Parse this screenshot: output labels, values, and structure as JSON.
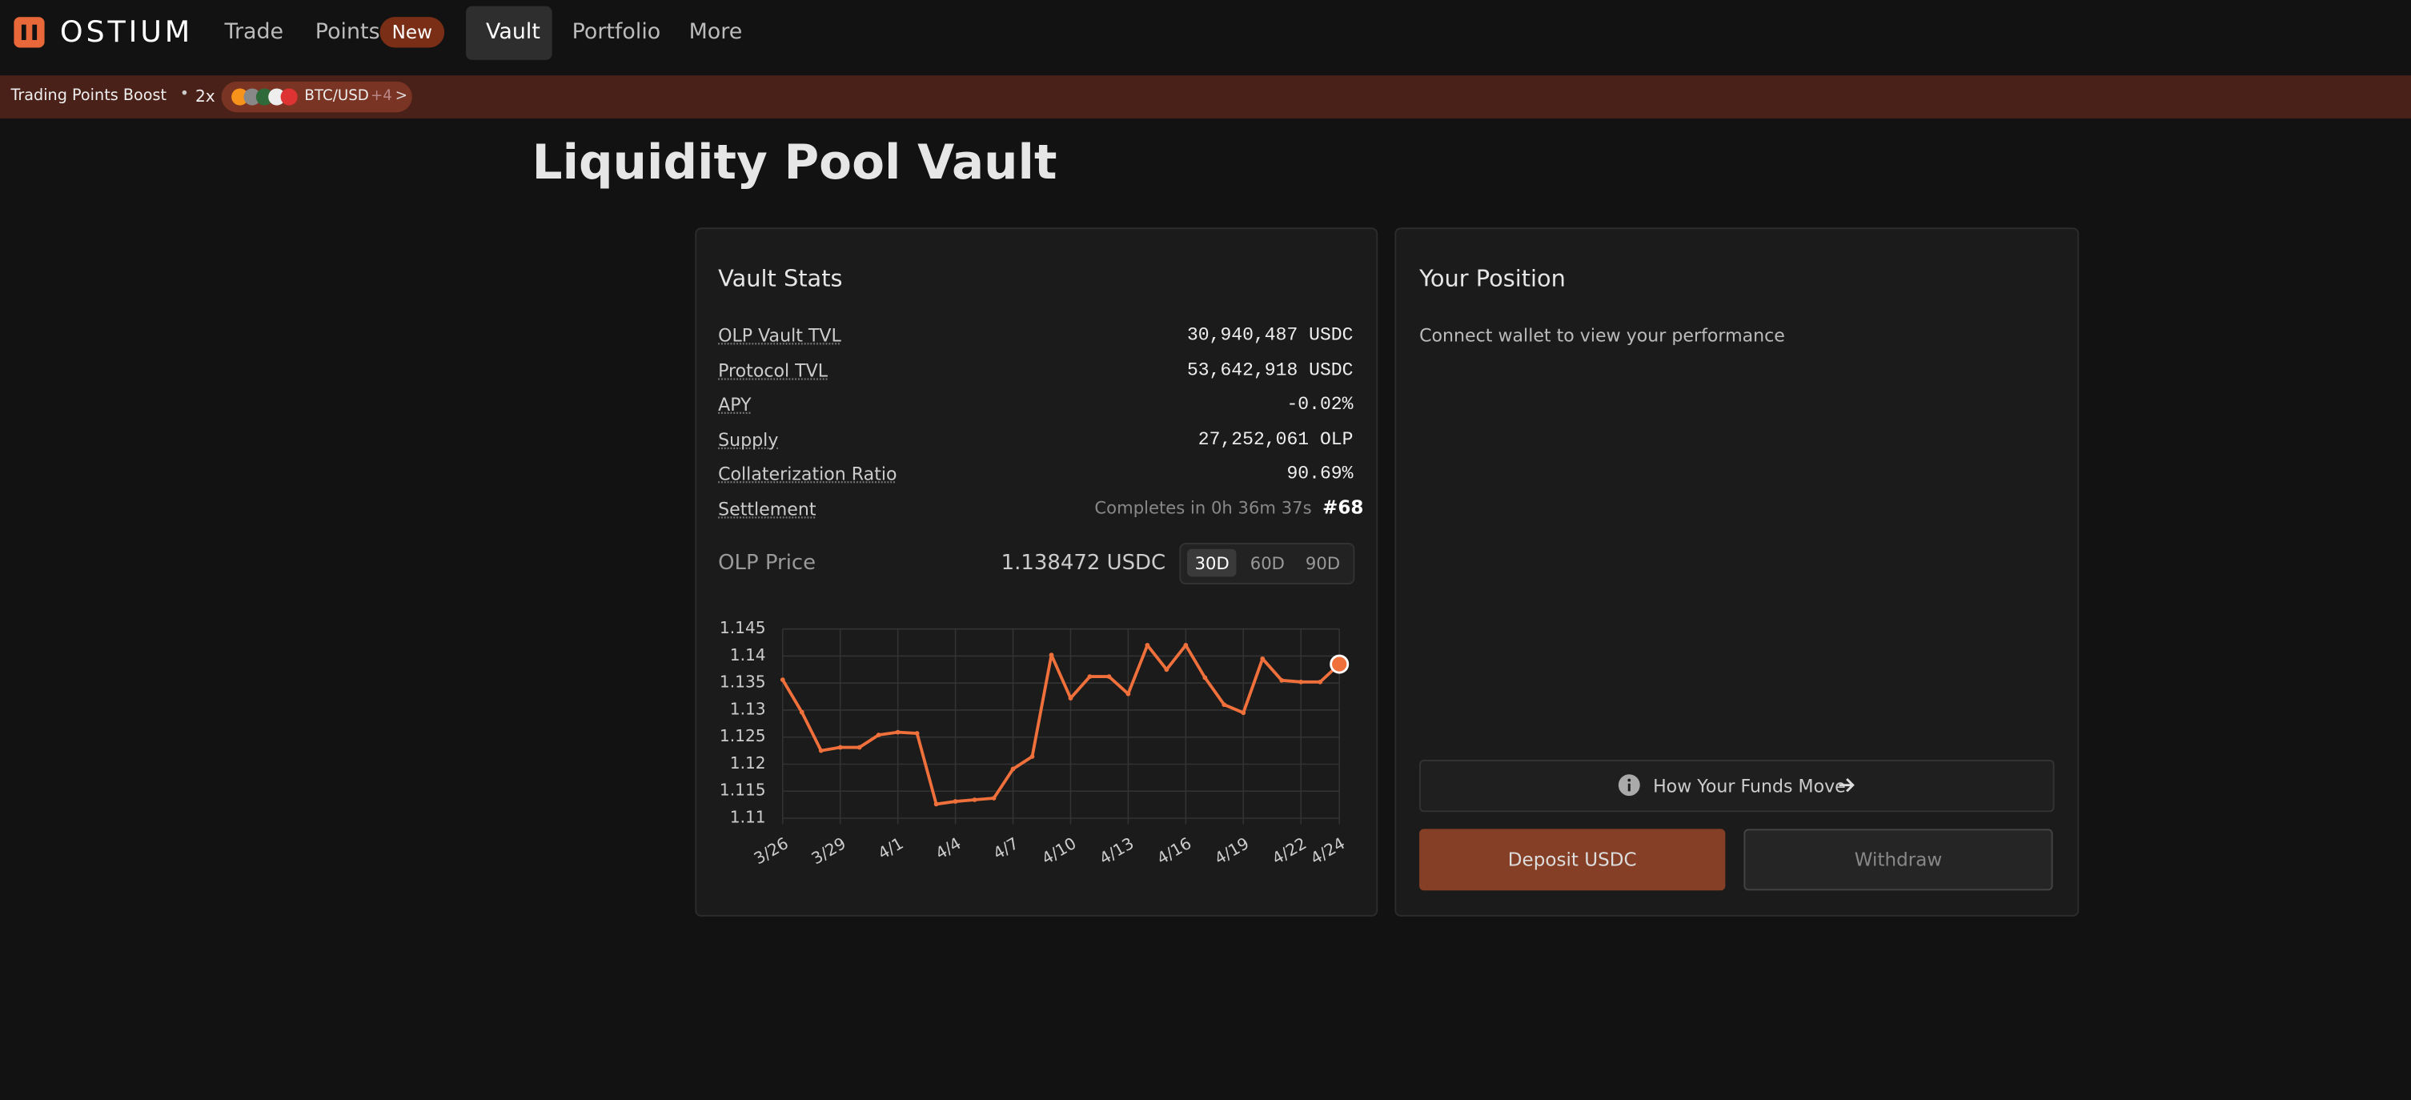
{
  "nav": {
    "logo": "OSTIUM",
    "items": [
      "Trade",
      "Points",
      "Vault",
      "Portfolio",
      "More"
    ],
    "badge": "New"
  },
  "banner": {
    "label": "Trading Points Boost",
    "multiplier": "2x",
    "pair": "BTC/USD",
    "more": "+4",
    "arrow": ">"
  },
  "page_title": "Liquidity Pool Vault",
  "vault_stats": {
    "title": "Vault Stats",
    "rows": [
      [
        "OLP Vault TVL",
        "30,940,487 USDC"
      ],
      [
        "Protocol TVL",
        "53,642,918 USDC"
      ],
      [
        "APY",
        "-0.02%"
      ],
      [
        "Supply",
        "27,252,061 OLP"
      ],
      [
        "Collaterization Ratio",
        "90.69%"
      ],
      [
        "Settlement",
        "Completes in 0h 36m 37s"
      ]
    ],
    "settlement_id": "#68",
    "price_label": "OLP Price",
    "price": "1.138472 USDC",
    "ranges": [
      "30D",
      "60D",
      "90D"
    ]
  },
  "chart_data": {
    "type": "line",
    "categories": [
      "3/26",
      null,
      null,
      "3/29",
      null,
      null,
      "4/1",
      null,
      null,
      "4/4",
      null,
      null,
      "4/7",
      null,
      null,
      "4/10",
      null,
      null,
      "4/13",
      null,
      null,
      "4/16",
      null,
      null,
      "4/19",
      null,
      null,
      "4/22",
      null,
      "4/24"
    ],
    "series": [
      {
        "name": "OLP Price",
        "color": "#f0703c",
        "values": [
          1.1356,
          1.1296,
          1.1225,
          1.1231,
          1.1231,
          1.1254,
          1.1259,
          1.1257,
          1.1126,
          1.1131,
          1.1134,
          1.1137,
          1.1191,
          1.1214,
          1.1402,
          1.1322,
          1.1362,
          1.1362,
          1.133,
          1.142,
          1.1375,
          1.142,
          1.136,
          1.131,
          1.1295,
          1.1395,
          1.1355,
          1.1352,
          1.1352,
          1.1385
        ]
      }
    ],
    "ylim": [
      1.11,
      1.145
    ],
    "yticks": [
      1.11,
      1.115,
      1.12,
      1.125,
      1.13,
      1.135,
      1.14,
      1.145
    ],
    "grid": true
  },
  "position": {
    "title": "Your Position",
    "message": "Connect wallet to view your performance",
    "funds_link": "How Your Funds Move",
    "deposit": "Deposit USDC",
    "withdraw": "Withdraw"
  }
}
